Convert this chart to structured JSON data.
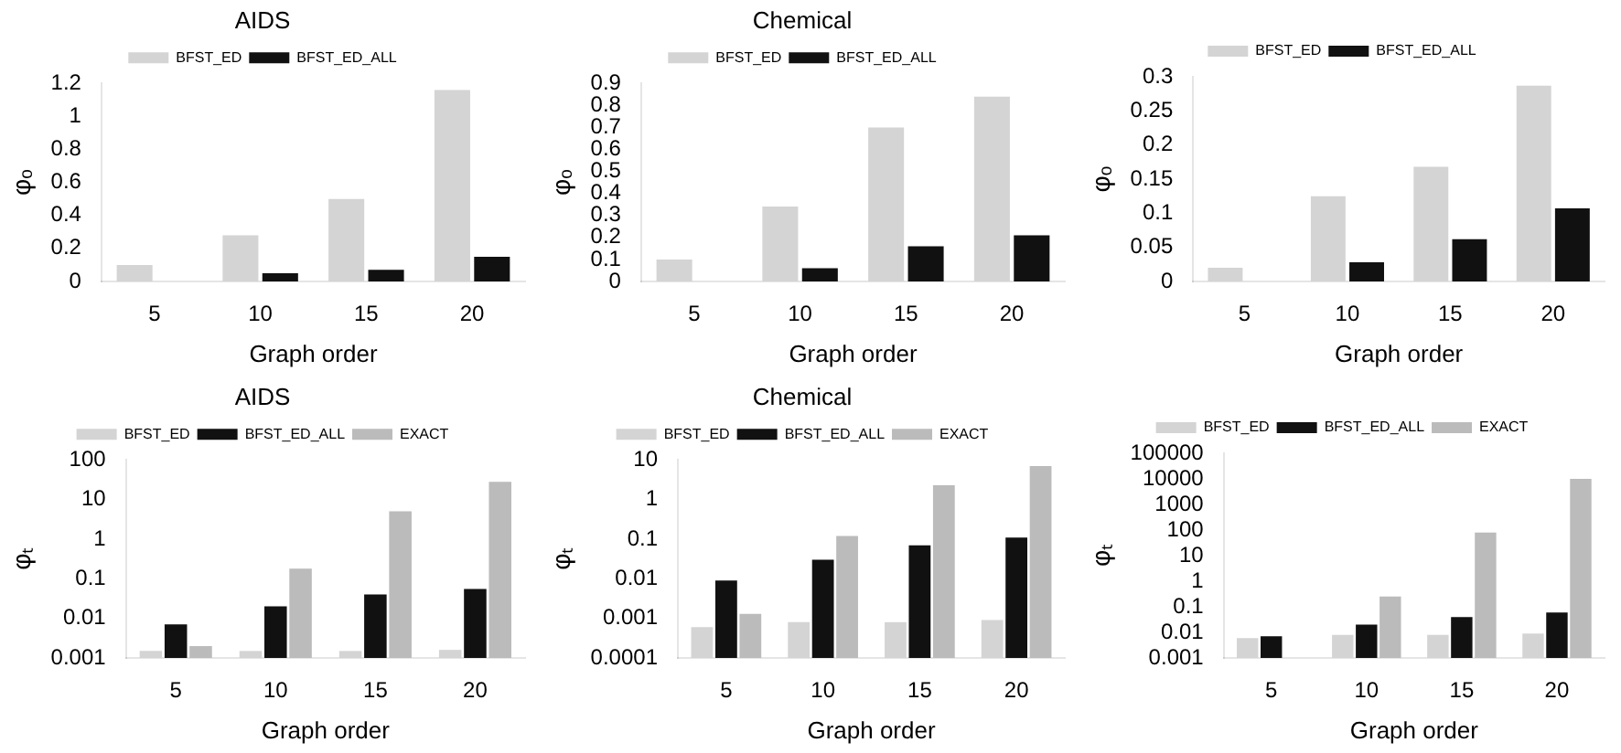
{
  "chart_data": [
    {
      "type": "bar",
      "title": "AIDS",
      "xlabel": "Graph order",
      "ylabel": "φₒ",
      "categories": [
        "5",
        "10",
        "15",
        "20"
      ],
      "ylim": [
        0,
        1.2
      ],
      "yticks": [
        0,
        0.2,
        0.4,
        0.6,
        0.8,
        1,
        1.2
      ],
      "legend": "top",
      "series": [
        {
          "name": "BFST_ED",
          "color": "#d4d4d4",
          "values": [
            0.1,
            0.28,
            0.5,
            1.16
          ]
        },
        {
          "name": "BFST_ED_ALL",
          "color": "#111111",
          "values": [
            null,
            0.05,
            0.07,
            0.15
          ]
        }
      ]
    },
    {
      "type": "bar",
      "title": "Chemical",
      "xlabel": "Graph order",
      "ylabel": "φₒ",
      "categories": [
        "5",
        "10",
        "15",
        "20"
      ],
      "ylim": [
        0,
        0.9
      ],
      "yticks": [
        0,
        0.1,
        0.2,
        0.3,
        0.4,
        0.5,
        0.6,
        0.7,
        0.8,
        0.9
      ],
      "legend": "top",
      "series": [
        {
          "name": "BFST_ED",
          "color": "#d4d4d4",
          "values": [
            0.1,
            0.34,
            0.7,
            0.84
          ]
        },
        {
          "name": "BFST_ED_ALL",
          "color": "#111111",
          "values": [
            null,
            0.06,
            0.16,
            0.21
          ]
        }
      ]
    },
    {
      "type": "bar",
      "xlabel": "Graph order",
      "ylabel": "φₒ",
      "categories": [
        "5",
        "10",
        "15",
        "20"
      ],
      "ylim": [
        0,
        0.3
      ],
      "yticks": [
        0,
        0.05,
        0.1,
        0.15,
        0.2,
        0.25,
        0.3
      ],
      "legend": "top",
      "series": [
        {
          "name": "BFST_ED",
          "color": "#d4d4d4",
          "values": [
            0.02,
            0.125,
            0.168,
            0.287
          ]
        },
        {
          "name": "BFST_ED_ALL",
          "color": "#111111",
          "values": [
            0,
            0.028,
            0.062,
            0.107
          ]
        }
      ]
    },
    {
      "type": "bar",
      "title": "AIDS",
      "xlabel": "Graph order",
      "ylabel": "φₜ",
      "categories": [
        "5",
        "10",
        "15",
        "20"
      ],
      "log": "y",
      "ylim": [
        0.001,
        100
      ],
      "yticks": [
        0.001,
        0.01,
        0.1,
        1,
        10,
        100
      ],
      "legend": "top",
      "series": [
        {
          "name": "BFST_ED",
          "color": "#d4d4d4",
          "values": [
            0.0015,
            0.0015,
            0.0015,
            0.0016
          ]
        },
        {
          "name": "BFST_ED_ALL",
          "color": "#111111",
          "values": [
            0.007,
            0.02,
            0.04,
            0.055
          ]
        },
        {
          "name": "EXACT",
          "color": "#bbbbbb",
          "values": [
            0.002,
            0.18,
            5,
            28
          ]
        }
      ]
    },
    {
      "type": "bar",
      "title": "Chemical",
      "xlabel": "Graph order",
      "ylabel": "φₜ",
      "categories": [
        "5",
        "10",
        "15",
        "20"
      ],
      "log": "y",
      "ylim": [
        0.0001,
        10
      ],
      "yticks": [
        0.0001,
        0.001,
        0.01,
        0.1,
        1,
        10
      ],
      "legend": "top",
      "series": [
        {
          "name": "BFST_ED",
          "color": "#d4d4d4",
          "values": [
            0.0006,
            0.0008,
            0.0008,
            0.0009
          ]
        },
        {
          "name": "BFST_ED_ALL",
          "color": "#111111",
          "values": [
            0.009,
            0.03,
            0.07,
            0.11
          ]
        },
        {
          "name": "EXACT",
          "color": "#bbbbbb",
          "values": [
            0.0013,
            0.12,
            2.3,
            7
          ]
        }
      ]
    },
    {
      "type": "bar",
      "xlabel": "Graph order",
      "ylabel": "φₜ",
      "categories": [
        "5",
        "10",
        "15",
        "20"
      ],
      "log": "y",
      "ylim": [
        0.001,
        100000
      ],
      "yticks": [
        0.001,
        0.01,
        0.1,
        1,
        10,
        100,
        1000,
        10000,
        100000
      ],
      "legend": "top",
      "series": [
        {
          "name": "BFST_ED",
          "color": "#d4d4d4",
          "values": [
            0.006,
            0.008,
            0.008,
            0.009
          ]
        },
        {
          "name": "BFST_ED_ALL",
          "color": "#111111",
          "values": [
            0.007,
            0.02,
            0.04,
            0.06
          ]
        },
        {
          "name": "EXACT",
          "color": "#bbbbbb",
          "values": [
            null,
            0.25,
            80,
            10000
          ]
        }
      ]
    }
  ]
}
